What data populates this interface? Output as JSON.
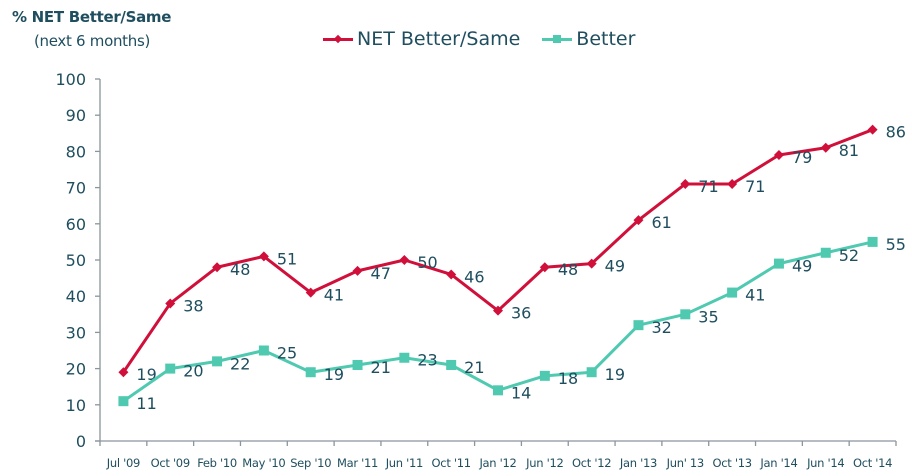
{
  "chart_data": {
    "type": "line",
    "title": "",
    "ylabel": "% NET Better/Same",
    "ylabel_sub": "(next 6 months)",
    "xlabel": "",
    "ylim": [
      0,
      100
    ],
    "yticks": [
      0,
      10,
      20,
      30,
      40,
      50,
      60,
      70,
      80,
      90,
      100
    ],
    "grid": false,
    "legend_position": "top-center",
    "categories": [
      "Jul '09",
      "Oct '09",
      "Feb '10",
      "May '10",
      "Sep '10",
      "Mar '11",
      "Jun '11",
      "Oct '11",
      "Jan '12",
      "Jun '12",
      "Oct '12",
      "Jan '13",
      "Jun' 13",
      "Oct '13",
      "Jan '14",
      "Jun '14",
      "Oct '14"
    ],
    "series": [
      {
        "name": "NET Better/Same",
        "color": "#d0103a",
        "marker": "diamond",
        "values": [
          19,
          38,
          48,
          51,
          41,
          47,
          50,
          46,
          36,
          48,
          49,
          61,
          71,
          71,
          79,
          81,
          86
        ]
      },
      {
        "name": "Better",
        "color": "#4fc9b0",
        "marker": "square",
        "values": [
          11,
          20,
          22,
          25,
          19,
          21,
          23,
          21,
          14,
          18,
          19,
          32,
          35,
          41,
          49,
          52,
          55
        ]
      }
    ]
  }
}
